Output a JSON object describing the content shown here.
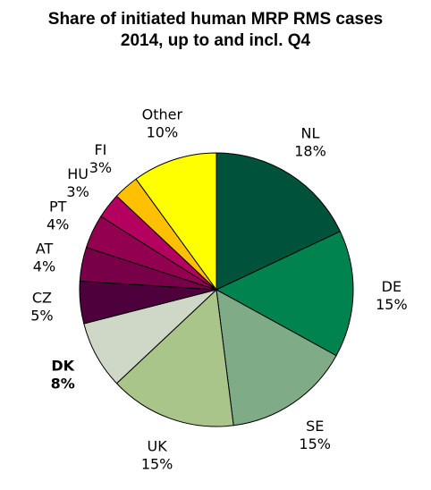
{
  "chart_data": {
    "type": "pie",
    "title_lines": [
      "Share of initiated human MRP RMS cases",
      "2014, up to and incl. Q4"
    ],
    "start": "12 o'clock",
    "direction": "clockwise",
    "slices": [
      {
        "name": "NL",
        "value": 18,
        "label": "18%",
        "color": "#00523a"
      },
      {
        "name": "DE",
        "value": 15,
        "label": "15%",
        "color": "#00834f"
      },
      {
        "name": "SE",
        "value": 15,
        "label": "15%",
        "color": "#7fac86"
      },
      {
        "name": "UK",
        "value": 15,
        "label": "15%",
        "color": "#a9c58a"
      },
      {
        "name": "DK",
        "value": 8,
        "label": "8%",
        "color": "#cfd8c7",
        "bold": true
      },
      {
        "name": "CZ",
        "value": 5,
        "label": "5%",
        "color": "#4e003c"
      },
      {
        "name": "AT",
        "value": 4,
        "label": "4%",
        "color": "#770048"
      },
      {
        "name": "PT",
        "value": 4,
        "label": "4%",
        "color": "#930050"
      },
      {
        "name": "HU",
        "value": 3,
        "label": "3%",
        "color": "#b4005e"
      },
      {
        "name": "FI",
        "value": 3,
        "label": "3%",
        "color": "#ffc000"
      },
      {
        "name": "Other",
        "value": 10,
        "label": "10%",
        "color": "#ffff00"
      }
    ]
  }
}
